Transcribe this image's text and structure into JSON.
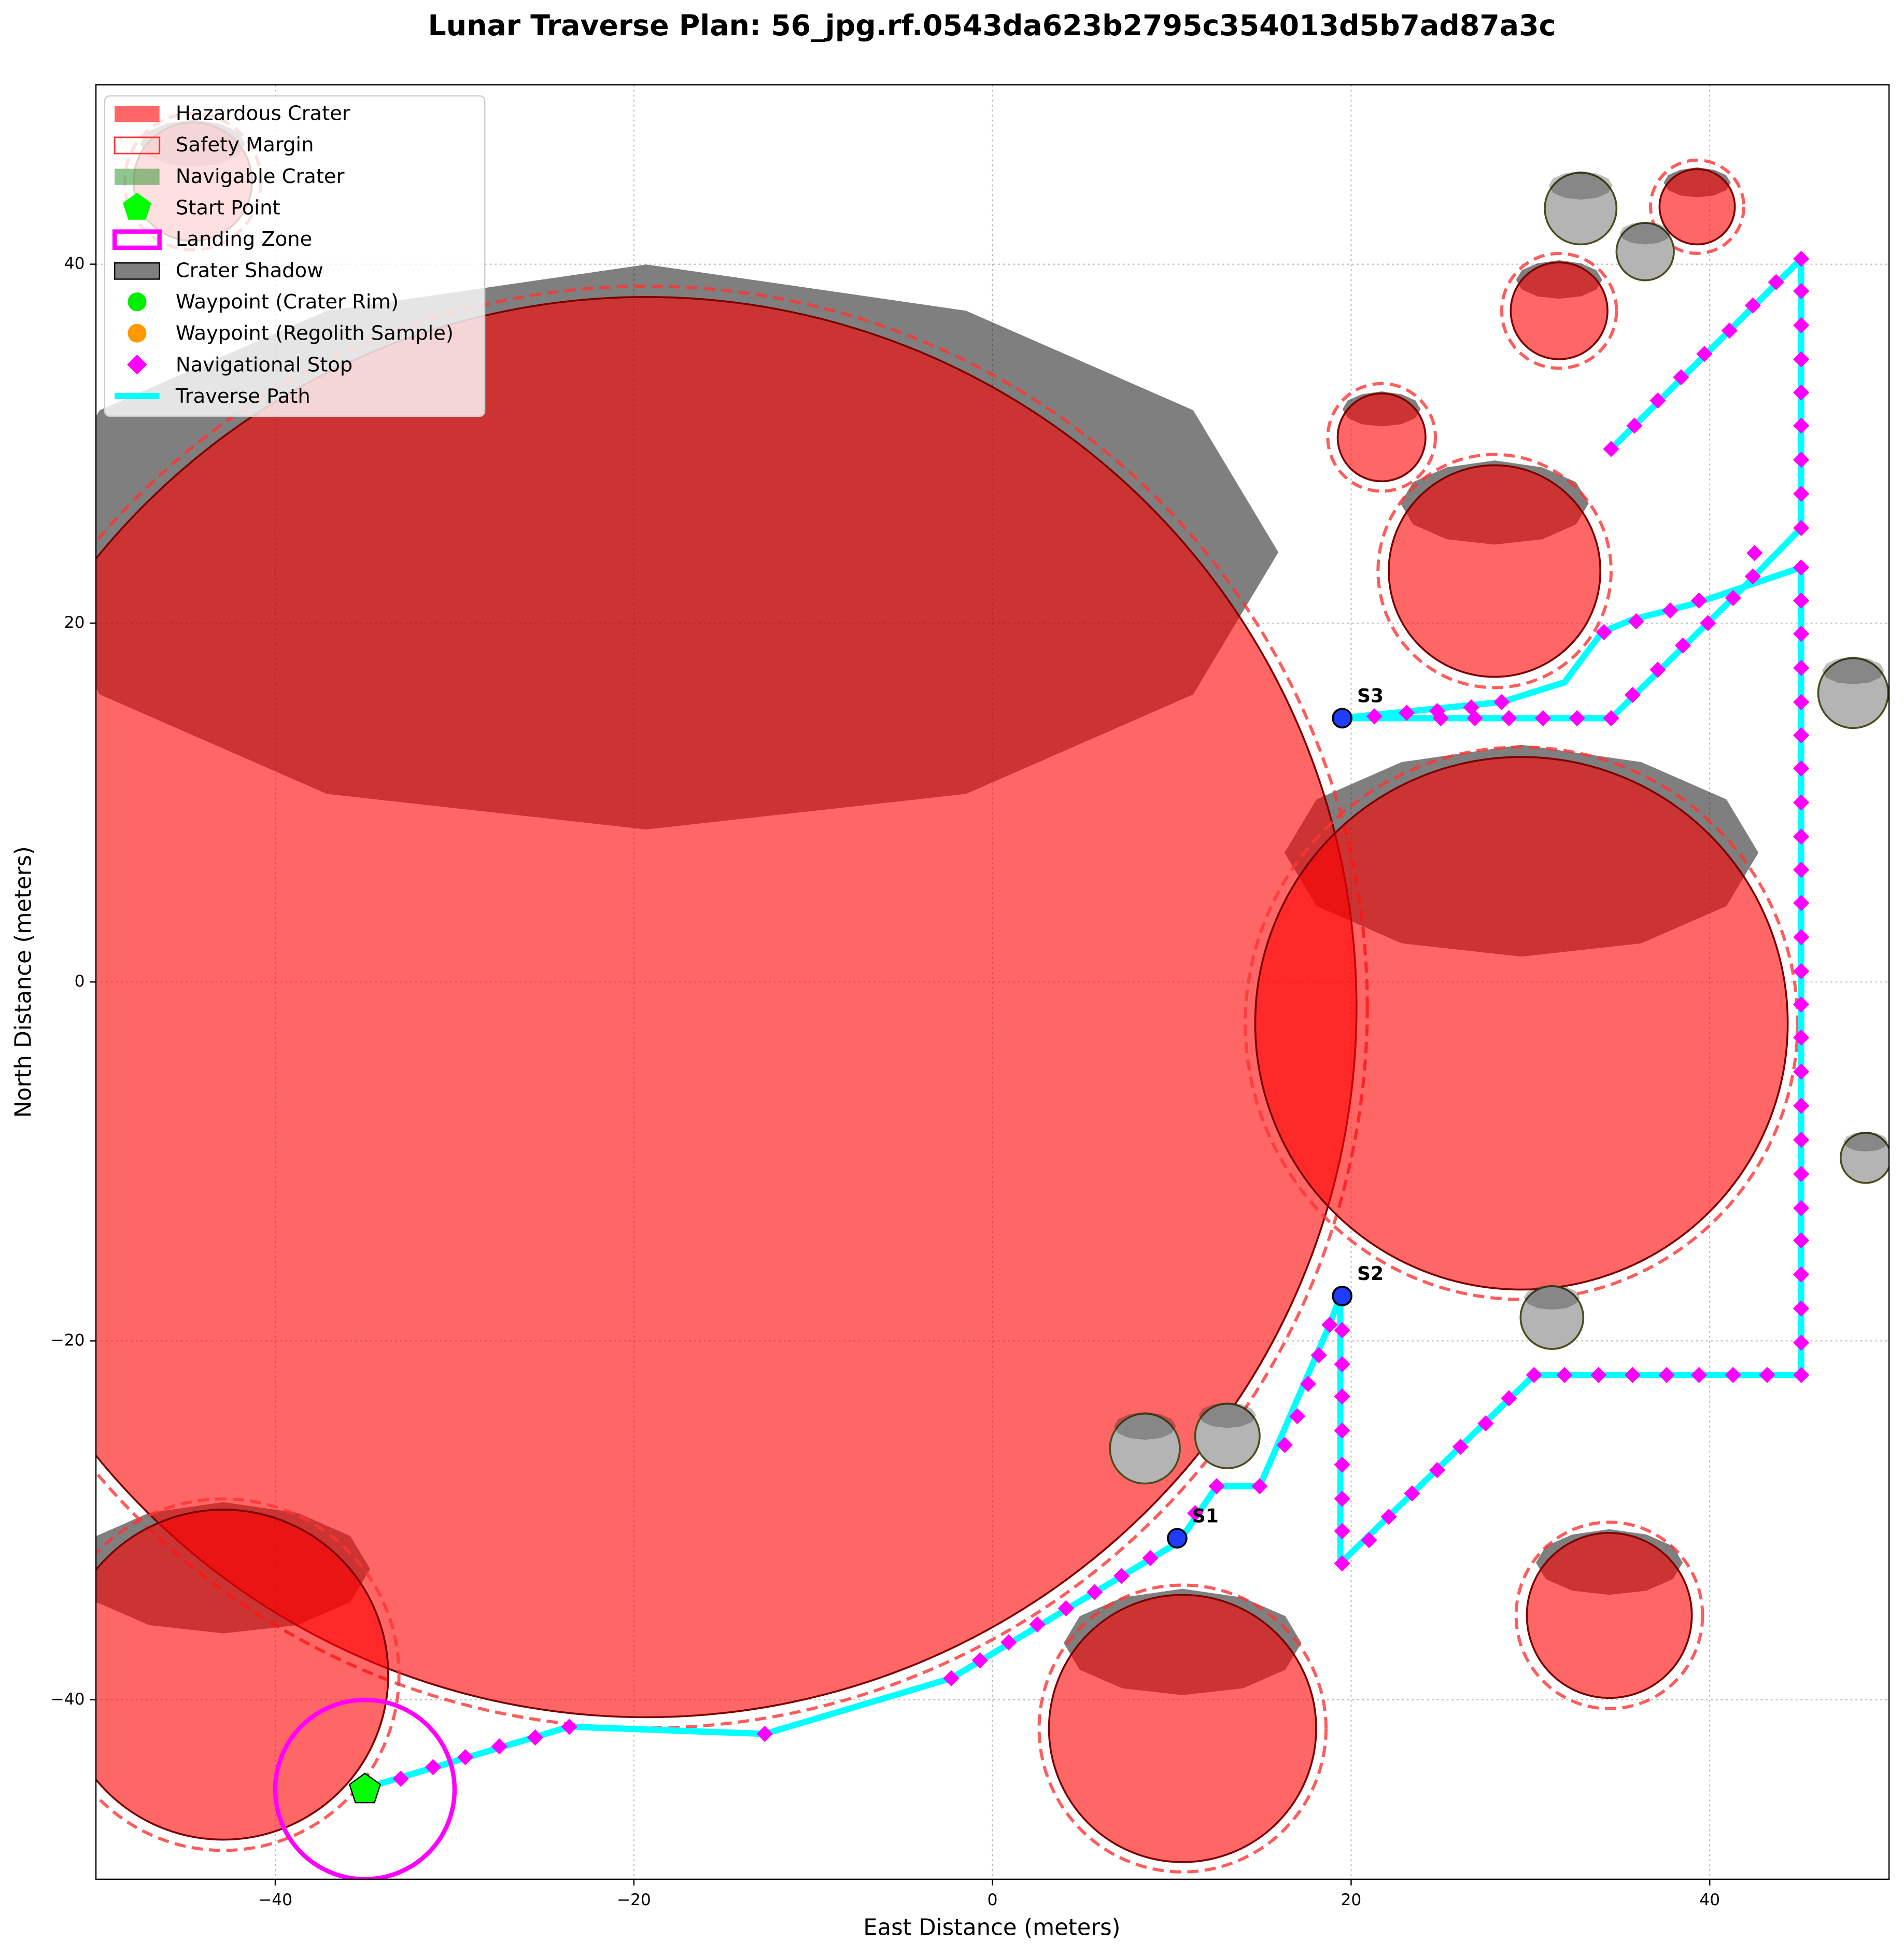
{
  "chart_data": {
    "type": "traverse_map",
    "title": "Lunar Traverse Plan: 56_jpg.rf.0543da623b2795c354013d5b7ad87a3c",
    "xlabel": "East Distance (meters)",
    "ylabel": "North Distance (meters)",
    "xlim": [
      -50,
      50
    ],
    "ylim": [
      -50,
      50
    ],
    "xticks": [
      {
        "value": -40,
        "label": "−40"
      },
      {
        "value": -20,
        "label": "−20"
      },
      0,
      20,
      40
    ],
    "yticks": [
      {
        "value": -40,
        "label": "−40"
      },
      {
        "value": -20,
        "label": "−20"
      },
      0,
      20,
      40
    ],
    "grid": true,
    "legend": "upper left",
    "hazardous_craters": {
      "name": "Hazardous Crater",
      "color": "#ff0000",
      "x": [
        -19.3,
        29.5,
        -42.9,
        10.6,
        34.4,
        28.0,
        21.7,
        31.6,
        39.3,
        -44.6
      ],
      "y": [
        -1.4,
        -2.3,
        -38.6,
        -41.6,
        -35.3,
        22.9,
        30.35,
        37.4,
        43.2,
        44.6
      ],
      "r": [
        39.6,
        14.85,
        9.2,
        7.45,
        4.6,
        5.9,
        2.45,
        2.7,
        2.1,
        3.3
      ]
    },
    "safety_margins": {
      "name": "Safety Margin",
      "color": "#ff3333",
      "r": [
        40.2,
        15.4,
        9.8,
        8.0,
        5.2,
        6.5,
        3.0,
        3.2,
        2.6,
        3.8
      ]
    },
    "navigable_craters": {
      "name": "Navigable Crater",
      "color": "#228b22",
      "x": [
        8.5,
        13.1,
        31.2,
        32.8,
        36.4,
        48.0,
        48.7
      ],
      "y": [
        -26.0,
        -25.3,
        -18.7,
        43.1,
        40.7,
        16.1,
        -9.8
      ],
      "r": [
        1.95,
        1.8,
        1.75,
        2.0,
        1.6,
        1.95,
        1.4
      ]
    },
    "start_point": {
      "name": "Start Point",
      "color": "#00ff00",
      "x": -35,
      "y": -45
    },
    "landing_zone": {
      "name": "Landing Zone",
      "color": "#ff00ff",
      "x": -35,
      "y": -45,
      "r": 5
    },
    "crater_shadow": {
      "name": "Crater Shadow",
      "color": "#000000"
    },
    "waypoint_crater_rim": {
      "name": "Waypoint (Crater Rim)",
      "color": "#00ee00"
    },
    "waypoint_regolith_sample": {
      "name": "Waypoint (Regolith Sample)",
      "color": "#ff9900"
    },
    "waypoints": {
      "color": "#1f3cff",
      "labels": [
        "S1",
        "S2",
        "S3"
      ],
      "x": [
        10.3,
        19.5,
        19.5
      ],
      "y": [
        -31.0,
        -17.5,
        14.7
      ]
    },
    "nav_stops": {
      "name": "Navigational Stop",
      "color": "#ff00ff",
      "x": [
        -33.0,
        -31.2,
        -29.4,
        -27.5,
        -25.5,
        -23.6,
        -12.7,
        -2.3,
        -0.7,
        0.9,
        2.5,
        4.1,
        5.7,
        7.2,
        8.8,
        11.3,
        12.5,
        14.9,
        16.3,
        17.0,
        17.6,
        18.2,
        18.8,
        19.5,
        19.5,
        19.5,
        19.5,
        19.5,
        19.5,
        19.5,
        19.5,
        21.0,
        22.1,
        23.4,
        24.8,
        26.1,
        27.5,
        28.8,
        30.2,
        31.9,
        33.8,
        35.7,
        37.6,
        39.4,
        41.3,
        43.2,
        45.1,
        45.1,
        45.1,
        45.1,
        45.1,
        45.1,
        45.1,
        45.1,
        45.1,
        45.1,
        45.1,
        45.1,
        45.1,
        45.1,
        45.1,
        45.1,
        45.1,
        45.1,
        45.1,
        45.1,
        45.1,
        45.1,
        45.1,
        45.1,
        45.1,
        42.4,
        39.4,
        37.8,
        35.9,
        34.1,
        28.4,
        26.7,
        24.8,
        23.1,
        21.3,
        25.0,
        26.9,
        28.8,
        30.7,
        32.6,
        34.5,
        35.7,
        37.1,
        38.5,
        39.9,
        41.3,
        42.5,
        45.1,
        45.1,
        45.1,
        45.1,
        45.1,
        45.1,
        45.1,
        45.1,
        45.1,
        43.7,
        42.4,
        41.1,
        39.7,
        38.4,
        37.1,
        35.8,
        34.5
      ],
      "y": [
        -44.4,
        -43.75,
        -43.2,
        -42.6,
        -42.1,
        -41.5,
        -41.9,
        -38.8,
        -37.8,
        -36.8,
        -35.8,
        -34.9,
        -34.0,
        -33.1,
        -32.1,
        -29.6,
        -28.1,
        -28.1,
        -25.8,
        -24.2,
        -22.4,
        -20.8,
        -19.1,
        -19.4,
        -21.3,
        -23.1,
        -25.0,
        -26.9,
        -28.8,
        -30.6,
        -32.4,
        -31.1,
        -29.8,
        -28.5,
        -27.2,
        -25.9,
        -24.6,
        -23.2,
        -21.9,
        -21.9,
        -21.9,
        -21.9,
        -21.9,
        -21.9,
        -21.9,
        -21.9,
        -21.9,
        -20.1,
        -18.2,
        -16.3,
        -14.4,
        -12.6,
        -10.7,
        -8.8,
        -6.9,
        -5.0,
        -3.1,
        -1.25,
        0.6,
        2.5,
        4.4,
        6.25,
        8.1,
        10.0,
        11.9,
        13.75,
        15.6,
        17.5,
        19.4,
        21.25,
        23.1,
        22.6,
        21.25,
        20.7,
        20.1,
        19.5,
        15.6,
        15.3,
        15.1,
        15.0,
        14.8,
        14.7,
        14.7,
        14.7,
        14.7,
        14.7,
        14.7,
        16.0,
        17.4,
        18.75,
        20.0,
        21.4,
        23.9,
        25.3,
        27.2,
        29.1,
        31.0,
        32.85,
        34.7,
        36.6,
        38.5,
        40.3,
        39.0,
        37.7,
        36.3,
        35.0,
        33.7,
        32.4,
        31.0,
        29.7
      ]
    },
    "traverse_path": {
      "name": "Traverse Path",
      "color": "#00ffff",
      "x": [
        -34.9,
        -23.6,
        -12.7,
        -2.3,
        10.4,
        12.5,
        14.9,
        18.8,
        19.4,
        19.4,
        30.2,
        45.1,
        45.1,
        39.2,
        35.7,
        34.0,
        31.9,
        28.4,
        19.4,
        34.5,
        41.3,
        45.1,
        45.1,
        34.5
      ],
      "y": [
        -44.9,
        -41.5,
        -41.9,
        -38.8,
        -31.2,
        -28.1,
        -28.1,
        -19.1,
        -17.5,
        -32.4,
        -21.9,
        -21.9,
        23.1,
        21.1,
        20.2,
        19.5,
        16.7,
        15.6,
        14.7,
        14.7,
        21.4,
        25.3,
        40.3,
        29.7
      ]
    }
  }
}
